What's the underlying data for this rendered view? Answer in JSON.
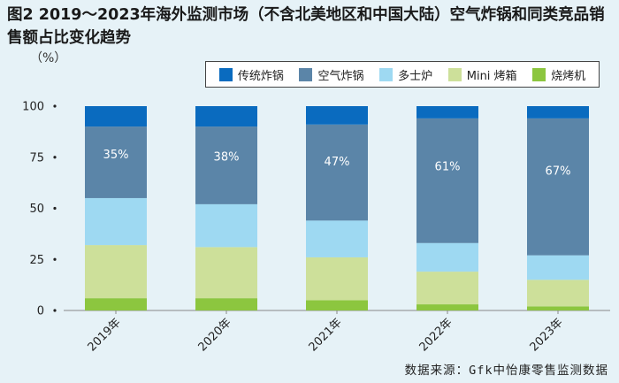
{
  "title": "图2  2019～2023年海外监测市场（不含北美地区和中国大陆）空气炸锅和同类竞品销售额占比变化趋势",
  "unit": "（%）",
  "source": "数据来源：Gfk中怡康零售监测数据",
  "chart_data": {
    "type": "bar",
    "stacked": true,
    "percent": true,
    "categories": [
      "2019年",
      "2020年",
      "2021年",
      "2022年",
      "2023年"
    ],
    "ylim": [
      0,
      100
    ],
    "yticks": [
      "0",
      "25",
      "50",
      "75",
      "100"
    ],
    "legend_position": "top-right",
    "series": [
      {
        "name": "烧烤机",
        "color": "#8cc63f",
        "values": [
          6,
          6,
          5,
          3,
          2
        ]
      },
      {
        "name": "Mini 烤箱",
        "color": "#cde09a",
        "values": [
          26,
          25,
          21,
          16,
          13
        ]
      },
      {
        "name": "多士炉",
        "color": "#9ed9f2",
        "values": [
          23,
          21,
          18,
          14,
          12
        ]
      },
      {
        "name": "空气炸锅",
        "color": "#5b85a8",
        "values": [
          35,
          38,
          47,
          61,
          67
        ]
      },
      {
        "name": "传统炸锅",
        "color": "#0a6bbf",
        "values": [
          10,
          10,
          9,
          6,
          6
        ]
      }
    ],
    "labels": {
      "series": "空气炸锅",
      "texts": [
        "35%",
        "38%",
        "47%",
        "61%",
        "67%"
      ]
    },
    "legend_order": [
      "传统炸锅",
      "空气炸锅",
      "多士炉",
      "Mini 烤箱",
      "烧烤机"
    ]
  }
}
